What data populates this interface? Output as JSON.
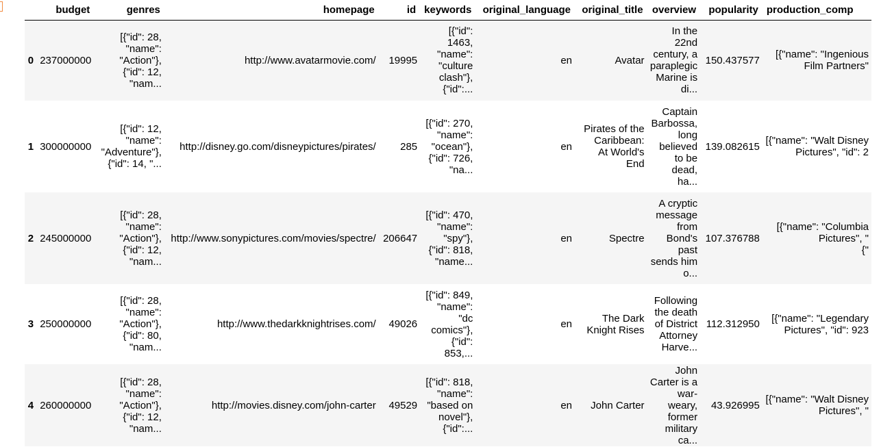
{
  "columns": [
    "budget",
    "genres",
    "homepage",
    "id",
    "keywords",
    "original_language",
    "original_title",
    "overview",
    "popularity",
    "production_comp"
  ],
  "rows": [
    {
      "index": "0",
      "budget": "237000000",
      "genres": [
        "[{\"id\": 28,",
        "\"name\":",
        "\"Action\"},",
        "{\"id\": 12,",
        "\"nam..."
      ],
      "homepage": "http://www.avatarmovie.com/",
      "id": "19995",
      "keywords": [
        "[{\"id\":",
        "1463,",
        "\"name\":",
        "\"culture",
        "clash\"},",
        "{\"id\":..."
      ],
      "original_language": "en",
      "original_title": [
        "Avatar"
      ],
      "overview": [
        "In the",
        "22nd",
        "century, a",
        "paraplegic",
        "Marine is",
        "di..."
      ],
      "popularity": "150.437577",
      "production_comp": [
        "[{\"name\": \"Ingenious",
        "Film Partners\""
      ]
    },
    {
      "index": "1",
      "budget": "300000000",
      "genres": [
        "[{\"id\": 12,",
        "\"name\":",
        "\"Adventure\"},",
        "{\"id\": 14, \"..."
      ],
      "homepage": "http://disney.go.com/disneypictures/pirates/",
      "id": "285",
      "keywords": [
        "[{\"id\": 270,",
        "\"name\":",
        "\"ocean\"},",
        "{\"id\": 726,",
        "\"na..."
      ],
      "original_language": "en",
      "original_title": [
        "Pirates of the",
        "Caribbean:",
        "At World's",
        "End"
      ],
      "overview": [
        "Captain",
        "Barbossa,",
        "long",
        "believed",
        "to be",
        "dead,",
        "ha..."
      ],
      "popularity": "139.082615",
      "production_comp": [
        "[{\"name\": \"Walt Disney",
        "Pictures\", \"id\": 2"
      ]
    },
    {
      "index": "2",
      "budget": "245000000",
      "genres": [
        "[{\"id\": 28,",
        "\"name\":",
        "\"Action\"},",
        "{\"id\": 12,",
        "\"nam..."
      ],
      "homepage": "http://www.sonypictures.com/movies/spectre/",
      "id": "206647",
      "keywords": [
        "[{\"id\": 470,",
        "\"name\":",
        "\"spy\"},",
        "{\"id\": 818,",
        "\"name..."
      ],
      "original_language": "en",
      "original_title": [
        "Spectre"
      ],
      "overview": [
        "A cryptic",
        "message",
        "from",
        "Bond's",
        "past",
        "sends him",
        "o..."
      ],
      "popularity": "107.376788",
      "production_comp": [
        "[{\"name\": \"Columbia",
        "Pictures\", \"",
        "{\""
      ]
    },
    {
      "index": "3",
      "budget": "250000000",
      "genres": [
        "[{\"id\": 28,",
        "\"name\":",
        "\"Action\"},",
        "{\"id\": 80,",
        "\"nam..."
      ],
      "homepage": "http://www.thedarkknightrises.com/",
      "id": "49026",
      "keywords": [
        "[{\"id\": 849,",
        "\"name\":",
        "\"dc",
        "comics\"},",
        "{\"id\":",
        "853,..."
      ],
      "original_language": "en",
      "original_title": [
        "The Dark",
        "Knight Rises"
      ],
      "overview": [
        "Following",
        "the death",
        "of District",
        "Attorney",
        "Harve..."
      ],
      "popularity": "112.312950",
      "production_comp": [
        "[{\"name\": \"Legendary",
        "Pictures\", \"id\": 923"
      ]
    },
    {
      "index": "4",
      "budget": "260000000",
      "genres": [
        "[{\"id\": 28,",
        "\"name\":",
        "\"Action\"},",
        "{\"id\": 12,",
        "\"nam..."
      ],
      "homepage": "http://movies.disney.com/john-carter",
      "id": "49529",
      "keywords": [
        "[{\"id\": 818,",
        "\"name\":",
        "\"based on",
        "novel\"},",
        "{\"id\":..."
      ],
      "original_language": "en",
      "original_title": [
        "John Carter"
      ],
      "overview": [
        "John",
        "Carter is a",
        "war-",
        "weary,",
        "former",
        "military",
        "ca..."
      ],
      "popularity": "43.926995",
      "production_comp": [
        "[{\"name\": \"Walt Disney",
        "Pictures\", \""
      ]
    }
  ]
}
